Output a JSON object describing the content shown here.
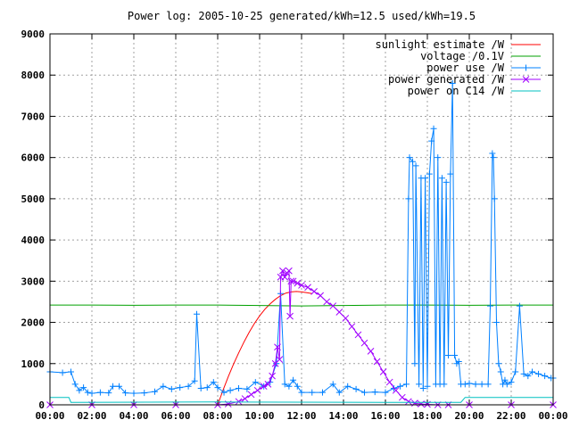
{
  "chart_data": {
    "type": "line",
    "title": "Power log: 2005-10-25 generated/kWh=12.5 used/kWh=19.5",
    "xlabel": "",
    "ylabel": "",
    "xlim": [
      0,
      24
    ],
    "ylim": [
      0,
      9000
    ],
    "grid": true,
    "legend_position": "top-right",
    "x_tick_labels": [
      "00:00",
      "02:00",
      "04:00",
      "06:00",
      "08:00",
      "10:00",
      "12:00",
      "14:00",
      "16:00",
      "18:00",
      "20:00",
      "22:00",
      "00:00"
    ],
    "y_ticks": [
      0,
      1000,
      2000,
      3000,
      4000,
      5000,
      6000,
      7000,
      8000,
      9000
    ],
    "series": [
      {
        "name": "sunlight estimate /W",
        "color": "#ff0000",
        "marker": "none",
        "x": [
          8.0,
          8.25,
          8.5,
          8.75,
          9.0,
          9.25,
          9.5,
          9.75,
          10.0,
          10.25,
          10.5,
          10.75,
          11.0,
          11.25,
          11.5,
          11.75,
          12.0,
          12.25,
          12.5
        ],
        "y": [
          0,
          350,
          680,
          980,
          1260,
          1520,
          1760,
          1970,
          2160,
          2320,
          2450,
          2560,
          2650,
          2710,
          2740,
          2750,
          2740,
          2720,
          2700
        ]
      },
      {
        "name": "voltage /0.1V",
        "color": "#00a000",
        "marker": "none",
        "x": [
          0.0,
          2.0,
          4.0,
          6.0,
          8.0,
          10.0,
          12.0,
          14.0,
          16.0,
          18.0,
          20.0,
          22.0,
          24.0
        ],
        "y": [
          2420,
          2420,
          2415,
          2420,
          2420,
          2410,
          2400,
          2410,
          2420,
          2420,
          2415,
          2420,
          2420
        ]
      },
      {
        "name": "power use /W",
        "color": "#0080ff",
        "marker": "+",
        "x": [
          0.0,
          0.6,
          1.0,
          1.2,
          1.4,
          1.6,
          1.8,
          2.0,
          2.4,
          2.8,
          3.0,
          3.3,
          3.6,
          4.0,
          4.5,
          5.0,
          5.4,
          5.8,
          6.2,
          6.6,
          6.9,
          7.0,
          7.2,
          7.5,
          7.8,
          8.0,
          8.3,
          8.6,
          9.0,
          9.4,
          9.8,
          10.2,
          10.5,
          10.8,
          11.0,
          11.2,
          11.4,
          11.6,
          11.8,
          12.0,
          12.5,
          13.0,
          13.5,
          13.8,
          14.2,
          14.6,
          15.0,
          15.5,
          16.0,
          16.4,
          16.7,
          17.0,
          17.1,
          17.15,
          17.3,
          17.4,
          17.45,
          17.6,
          17.7,
          17.8,
          17.9,
          18.0,
          18.1,
          18.2,
          18.3,
          18.4,
          18.5,
          18.6,
          18.7,
          18.8,
          18.9,
          19.0,
          19.1,
          19.2,
          19.3,
          19.4,
          19.5,
          19.6,
          19.8,
          20.0,
          20.3,
          20.6,
          20.9,
          21.0,
          21.1,
          21.15,
          21.2,
          21.3,
          21.4,
          21.5,
          21.6,
          21.7,
          21.8,
          22.0,
          22.2,
          22.4,
          22.6,
          22.8,
          23.0,
          23.3,
          23.6,
          23.9,
          24.0
        ],
        "y": [
          800,
          780,
          800,
          500,
          350,
          420,
          300,
          280,
          300,
          290,
          450,
          450,
          290,
          280,
          290,
          320,
          450,
          380,
          420,
          450,
          580,
          2200,
          400,
          420,
          550,
          420,
          300,
          350,
          400,
          380,
          550,
          450,
          550,
          1000,
          2700,
          500,
          450,
          600,
          450,
          300,
          300,
          300,
          500,
          300,
          450,
          380,
          300,
          310,
          300,
          400,
          450,
          500,
          5000,
          6000,
          5900,
          1000,
          5800,
          500,
          5500,
          400,
          5500,
          450,
          5600,
          6400,
          6700,
          500,
          6000,
          500,
          5500,
          500,
          5400,
          1200,
          5600,
          7800,
          1200,
          1000,
          1050,
          500,
          500,
          520,
          500,
          500,
          500,
          2400,
          6100,
          6000,
          5000,
          2000,
          1000,
          800,
          500,
          600,
          500,
          550,
          800,
          2400,
          750,
          700,
          800,
          750,
          700,
          650,
          650
        ]
      },
      {
        "name": "power generated /W",
        "color": "#a000ff",
        "marker": "x",
        "x": [
          0.0,
          2.0,
          4.0,
          6.0,
          8.0,
          8.5,
          9.0,
          9.3,
          9.6,
          9.9,
          10.2,
          10.4,
          10.6,
          10.75,
          10.85,
          10.95,
          11.0,
          11.1,
          11.2,
          11.3,
          11.4,
          11.45,
          11.5,
          11.6,
          11.8,
          12.0,
          12.3,
          12.6,
          12.9,
          13.2,
          13.5,
          13.8,
          14.1,
          14.4,
          14.7,
          15.0,
          15.3,
          15.6,
          15.9,
          16.2,
          16.5,
          16.8,
          17.1,
          17.4,
          17.7,
          18.0,
          18.5,
          19.0,
          20.0,
          22.0,
          24.0
        ],
        "y": [
          0,
          0,
          0,
          0,
          0,
          20,
          80,
          150,
          250,
          350,
          450,
          500,
          700,
          1000,
          1400,
          1100,
          3100,
          3250,
          3100,
          3200,
          3250,
          2150,
          3000,
          3000,
          2950,
          2900,
          2850,
          2750,
          2650,
          2500,
          2400,
          2250,
          2100,
          1900,
          1700,
          1500,
          1300,
          1050,
          800,
          550,
          350,
          180,
          80,
          40,
          20,
          10,
          0,
          0,
          0,
          0,
          0
        ]
      },
      {
        "name": "power on C14 /W",
        "color": "#00c0c0",
        "marker": "none",
        "x": [
          0.0,
          0.9,
          1.0,
          8.0,
          16.0,
          19.6,
          19.8,
          24.0
        ],
        "y": [
          180,
          180,
          60,
          70,
          60,
          60,
          180,
          180
        ]
      }
    ]
  }
}
